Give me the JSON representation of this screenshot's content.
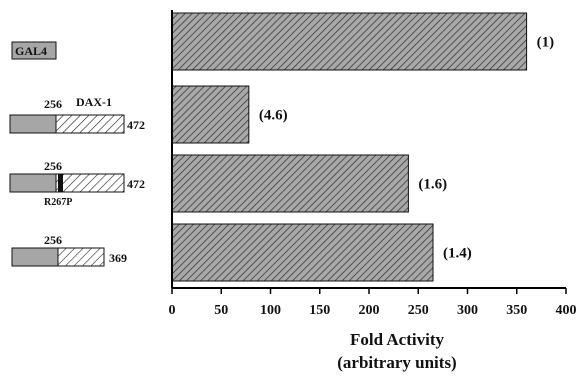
{
  "chart_data": {
    "type": "bar",
    "orientation": "horizontal",
    "categories": [
      "GAL4",
      "GAL4-DAX-1 (256-472)",
      "GAL4-DAX-1 R267P (256-472)",
      "GAL4-DAX-1 (256-369)"
    ],
    "values": [
      360,
      78,
      240,
      265
    ],
    "bar_annotations": [
      "(1)",
      "(4.6)",
      "(1.6)",
      "(1.4)"
    ],
    "xlim": [
      0,
      400
    ],
    "xticks": [
      "0",
      "50",
      "100",
      "150",
      "200",
      "250",
      "300",
      "350",
      "400"
    ],
    "xlabel_line1": "Fold Activity",
    "xlabel_line2": "(arbitrary units)",
    "grid": false,
    "construct_labels": {
      "gal4": "GAL4",
      "dax_name": "DAX-1",
      "row2_start": "256",
      "row2_end": "472",
      "row3_start": "256",
      "row3_end": "472",
      "row3_mutation": "R267P",
      "row4_start": "256",
      "row4_end": "369"
    },
    "colors": {
      "bar_fill": "#a8a8a8",
      "bar_hatch": "#3a3a3a",
      "gal4_fill": "#a6a6a6",
      "axis": "#000000"
    }
  }
}
